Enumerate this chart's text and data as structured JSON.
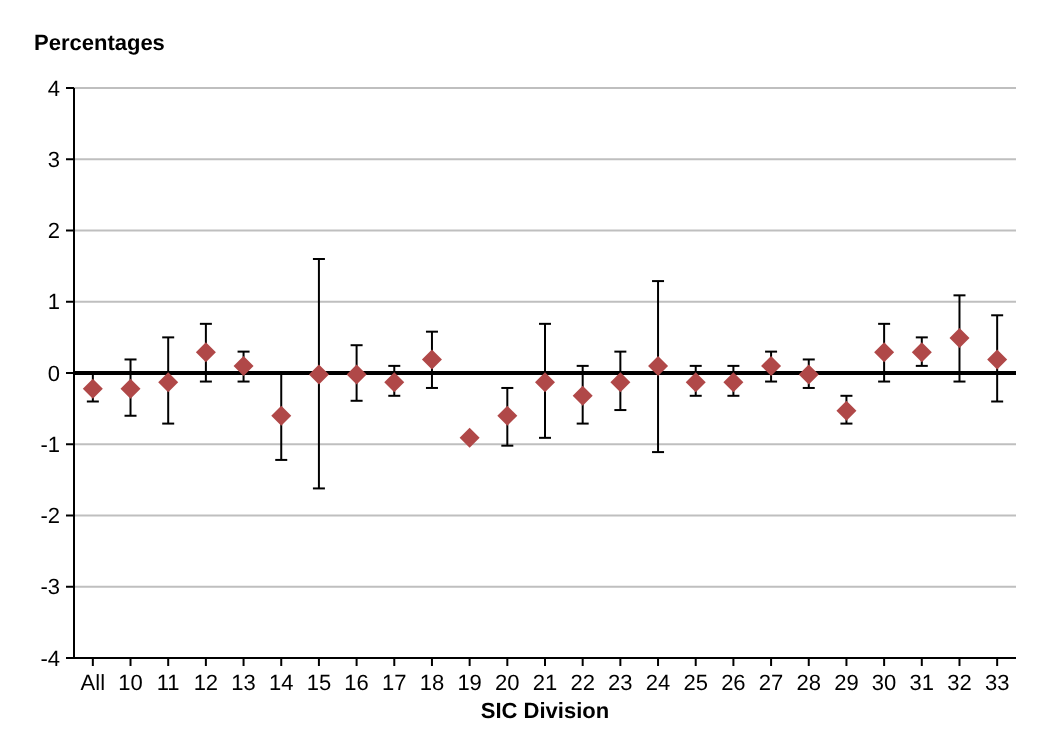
{
  "chart_data": {
    "type": "scatter",
    "ylabel": "Percentages",
    "xlabel": "SIC Division",
    "categories": [
      "All",
      "10",
      "11",
      "12",
      "13",
      "14",
      "15",
      "16",
      "17",
      "18",
      "19",
      "20",
      "21",
      "22",
      "23",
      "24",
      "25",
      "26",
      "27",
      "28",
      "29",
      "30",
      "31",
      "32",
      "33"
    ],
    "series": [
      {
        "color": "#b04848",
        "values": [
          -0.22,
          -0.22,
          -0.13,
          0.29,
          0.1,
          -0.6,
          -0.02,
          -0.02,
          -0.13,
          0.19,
          -0.91,
          -0.6,
          -0.13,
          -0.32,
          -0.13,
          0.1,
          -0.13,
          -0.13,
          0.1,
          -0.02,
          -0.53,
          0.29,
          0.29,
          0.49,
          0.19
        ],
        "errors": [
          [
            -0.4,
            0
          ],
          [
            -0.6,
            0.19
          ],
          [
            -0.71,
            0.5
          ],
          [
            -0.12,
            0.69
          ],
          [
            -0.12,
            0.3
          ],
          [
            -1.22,
            0
          ],
          [
            -1.62,
            1.6
          ],
          [
            -0.39,
            0.39
          ],
          [
            -0.32,
            0.1
          ],
          [
            -0.21,
            0.58
          ],
          null,
          [
            -1.02,
            -0.21
          ],
          [
            -0.91,
            0.69
          ],
          [
            -0.71,
            0.1
          ],
          [
            -0.52,
            0.3
          ],
          [
            -1.11,
            1.29
          ],
          [
            -0.32,
            0.1
          ],
          [
            -0.32,
            0.1
          ],
          [
            -0.12,
            0.3
          ],
          [
            -0.21,
            0.19
          ],
          [
            -0.71,
            -0.32
          ],
          [
            -0.12,
            0.69
          ],
          [
            0.1,
            0.5
          ],
          [
            -0.12,
            1.09
          ],
          [
            -0.4,
            0.81
          ]
        ]
      }
    ],
    "ylim": [
      -4,
      4
    ],
    "yticks": [
      -4,
      -3,
      -2,
      -1,
      0,
      1,
      2,
      3,
      4
    ],
    "ref_lines": [
      {
        "axis": "y",
        "value": 0,
        "color": "#000000"
      }
    ],
    "grid": "y",
    "marker": "diamond"
  }
}
